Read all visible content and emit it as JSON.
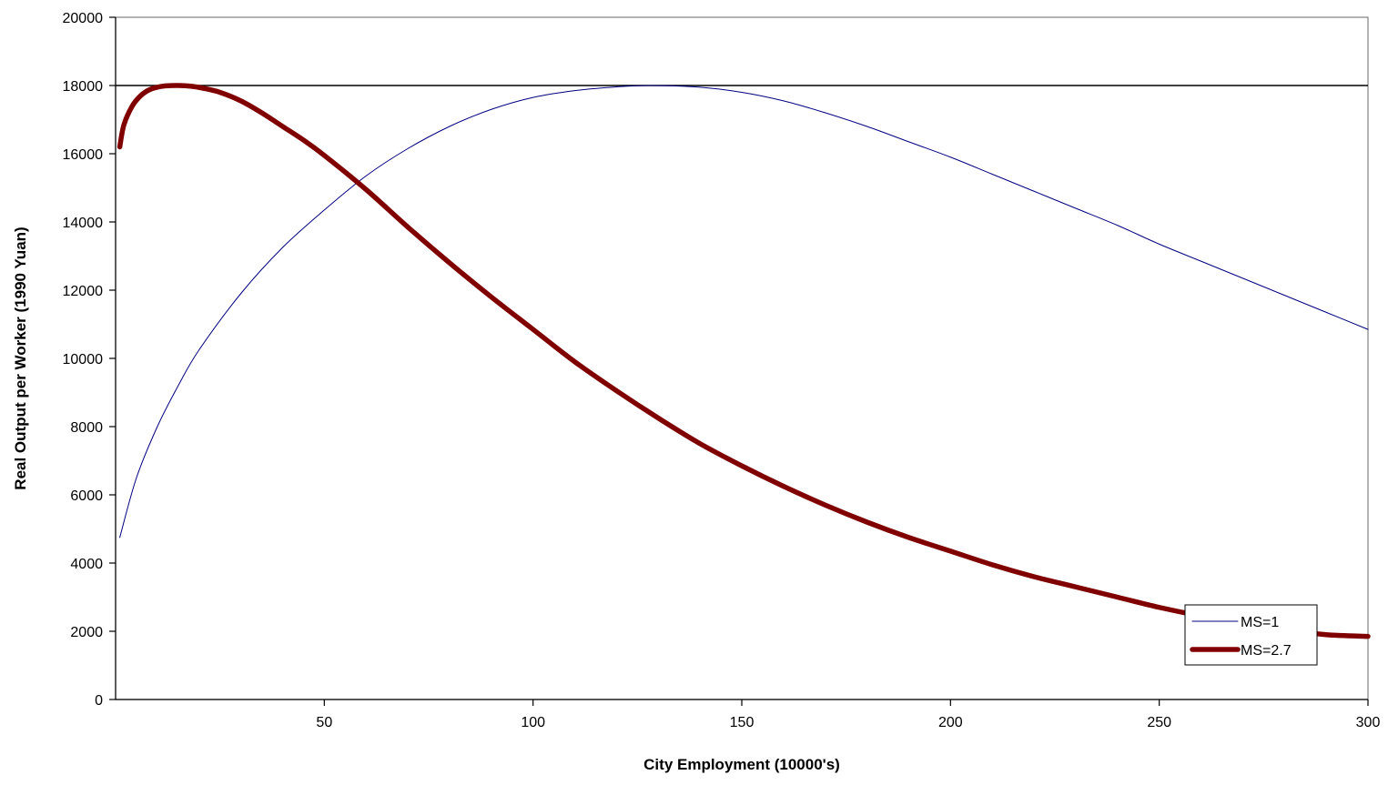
{
  "chart_data": {
    "type": "line",
    "title": "",
    "xlabel": "City Employment (10000's)",
    "ylabel": "Real Output per Worker (1990 Yuan)",
    "xlim": [
      0,
      300
    ],
    "ylim": [
      0,
      20000
    ],
    "x_ticks": [
      "50",
      "100",
      "150",
      "200",
      "250",
      "300"
    ],
    "x_tick_values": [
      50,
      100,
      150,
      200,
      250,
      300
    ],
    "y_ticks": [
      "0",
      "2000",
      "4000",
      "6000",
      "8000",
      "10000",
      "12000",
      "14000",
      "16000",
      "18000",
      "20000"
    ],
    "y_tick_values": [
      0,
      2000,
      4000,
      6000,
      8000,
      10000,
      12000,
      14000,
      16000,
      18000,
      20000
    ],
    "grid": false,
    "legend_position": "bottom-right",
    "reference_line": {
      "y": 18000,
      "color": "#000000"
    },
    "series": [
      {
        "name": "MS=1",
        "color": "#000080",
        "style": "thin",
        "x": [
          1,
          5,
          10,
          15,
          20,
          30,
          40,
          50,
          60,
          70,
          80,
          90,
          100,
          110,
          120,
          128,
          140,
          150,
          160,
          170,
          180,
          190,
          200,
          210,
          220,
          230,
          240,
          250,
          260,
          270,
          280,
          290,
          300
        ],
        "y": [
          4750,
          6500,
          8000,
          9200,
          10250,
          11900,
          13250,
          14350,
          15350,
          16150,
          16800,
          17300,
          17650,
          17850,
          17960,
          18000,
          17950,
          17800,
          17550,
          17200,
          16800,
          16350,
          15900,
          15400,
          14900,
          14400,
          13900,
          13350,
          12850,
          12350,
          11850,
          11350,
          10850
        ]
      },
      {
        "name": "MS=2.7",
        "color": "#800000",
        "style": "thick",
        "x": [
          1,
          2,
          4,
          6,
          8,
          10,
          12,
          15,
          18,
          21,
          25,
          30,
          35,
          40,
          45,
          50,
          60,
          70,
          80,
          90,
          100,
          110,
          120,
          130,
          140,
          150,
          160,
          170,
          180,
          190,
          200,
          210,
          220,
          230,
          240,
          250,
          260,
          270,
          280,
          290,
          300
        ],
        "y": [
          16200,
          16850,
          17400,
          17700,
          17870,
          17950,
          17990,
          18000,
          17980,
          17920,
          17800,
          17550,
          17200,
          16800,
          16400,
          15950,
          14950,
          13850,
          12800,
          11800,
          10850,
          9900,
          9050,
          8250,
          7500,
          6850,
          6250,
          5700,
          5200,
          4750,
          4350,
          3950,
          3600,
          3300,
          3000,
          2700,
          2450,
          2250,
          2050,
          1900,
          1850
        ]
      }
    ]
  }
}
